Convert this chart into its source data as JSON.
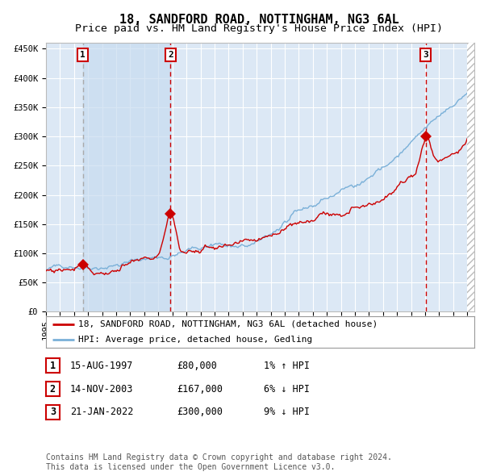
{
  "title": "18, SANDFORD ROAD, NOTTINGHAM, NG3 6AL",
  "subtitle": "Price paid vs. HM Land Registry's House Price Index (HPI)",
  "background_color": "#ffffff",
  "plot_bg_color": "#dce8f5",
  "grid_color": "#ffffff",
  "ylim": [
    0,
    460000
  ],
  "yticks": [
    0,
    50000,
    100000,
    150000,
    200000,
    250000,
    300000,
    350000,
    400000,
    450000
  ],
  "ytick_labels": [
    "£0",
    "£50K",
    "£100K",
    "£150K",
    "£200K",
    "£250K",
    "£300K",
    "£350K",
    "£400K",
    "£450K"
  ],
  "xlim_start": 1995.0,
  "xlim_end": 2025.5,
  "sale_dates": [
    1997.62,
    2003.87,
    2022.05
  ],
  "sale_prices": [
    80000,
    167000,
    300000
  ],
  "sale_labels": [
    "1",
    "2",
    "3"
  ],
  "vline_color_1": "#aaaaaa",
  "vline_color_23": "#cc0000",
  "shade_start": 1997.62,
  "shade_end": 2003.87,
  "shade_color": "#c8dcf0",
  "shade_alpha": 0.7,
  "red_line_color": "#cc0000",
  "blue_line_color": "#7ab0d8",
  "legend_label_red": "18, SANDFORD ROAD, NOTTINGHAM, NG3 6AL (detached house)",
  "legend_label_blue": "HPI: Average price, detached house, Gedling",
  "table_rows": [
    {
      "label": "1",
      "date": "15-AUG-1997",
      "price": "£80,000",
      "hpi": "1% ↑ HPI"
    },
    {
      "label": "2",
      "date": "14-NOV-2003",
      "price": "£167,000",
      "hpi": "6% ↓ HPI"
    },
    {
      "label": "3",
      "date": "21-JAN-2022",
      "price": "£300,000",
      "hpi": "9% ↓ HPI"
    }
  ],
  "footer": "Contains HM Land Registry data © Crown copyright and database right 2024.\nThis data is licensed under the Open Government Licence v3.0.",
  "title_fontsize": 11,
  "subtitle_fontsize": 9.5,
  "tick_fontsize": 7.5,
  "legend_fontsize": 8,
  "table_fontsize": 8.5,
  "footer_fontsize": 7
}
